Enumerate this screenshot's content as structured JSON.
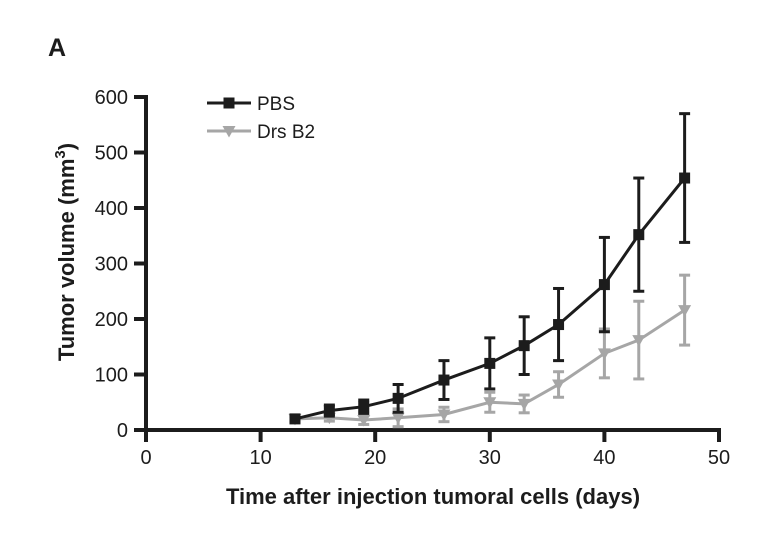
{
  "panel_label": "A",
  "chart_data": {
    "type": "line",
    "title": "",
    "xlabel": "Time after injection tumoral cells (days)",
    "ylabel": "Tumor volume (mm3)",
    "ylabel_parts": [
      "Tumor volume (mm",
      "3",
      ")"
    ],
    "xlim": [
      0,
      50
    ],
    "ylim": [
      0,
      600
    ],
    "x_ticks": [
      0,
      10,
      20,
      30,
      40,
      50
    ],
    "y_ticks": [
      0,
      100,
      200,
      300,
      400,
      500,
      600
    ],
    "grid": false,
    "legend_position": "top-left-inside",
    "axis_color": "#1c1c1c",
    "x": [
      13,
      16,
      19,
      22,
      26,
      30,
      33,
      36,
      40,
      43,
      47
    ],
    "series": [
      {
        "name": "PBS",
        "color": "#1c1c1c",
        "marker": "square",
        "values": [
          20,
          35,
          42,
          57,
          90,
          120,
          152,
          190,
          262,
          352,
          454
        ],
        "errors": [
          5,
          10,
          12,
          25,
          35,
          46,
          52,
          65,
          85,
          102,
          116
        ]
      },
      {
        "name": "Drs B2",
        "color": "#a6a6a6",
        "marker": "triangle-down",
        "values": [
          20,
          22,
          18,
          22,
          28,
          50,
          47,
          82,
          138,
          162,
          216
        ],
        "errors": [
          4,
          6,
          8,
          16,
          13,
          18,
          16,
          23,
          44,
          70,
          63
        ]
      }
    ]
  }
}
